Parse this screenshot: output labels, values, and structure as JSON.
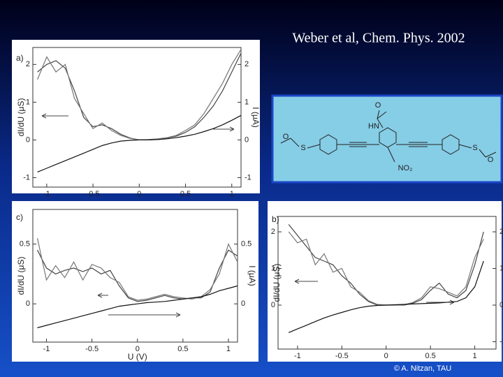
{
  "title": "Weber et al, Chem. Phys. 2002",
  "credit": "© A. Nitzan, TAU",
  "molecule": {
    "labels": [
      "O",
      "HN",
      "O",
      "S",
      "S",
      "O",
      "NO₂"
    ]
  },
  "chart_data": [
    {
      "type": "line",
      "panel_label": "a)",
      "ylabel": "dI/dU (μS)",
      "y2label": "I (μA)",
      "x": [
        -1.1,
        -1,
        -0.9,
        -0.8,
        -0.7,
        -0.6,
        -0.5,
        -0.4,
        -0.3,
        -0.2,
        -0.1,
        0,
        0.1,
        0.2,
        0.3,
        0.4,
        0.5,
        0.6,
        0.7,
        0.8,
        0.9,
        1,
        1.1
      ],
      "series": [
        {
          "color": "#444444",
          "values": [
            1.8,
            2.0,
            2.1,
            1.9,
            1.3,
            0.6,
            0.35,
            0.4,
            0.3,
            0.15,
            0.05,
            0,
            0,
            0.02,
            0.05,
            0.1,
            0.2,
            0.35,
            0.6,
            0.9,
            1.3,
            1.8,
            2.3
          ]
        },
        {
          "color": "#777777",
          "values": [
            1.6,
            2.2,
            1.8,
            2.0,
            1.1,
            0.7,
            0.3,
            0.45,
            0.25,
            0.12,
            0.04,
            0,
            0.01,
            0.03,
            0.06,
            0.12,
            0.25,
            0.4,
            0.7,
            1.1,
            1.5,
            2.0,
            2.4
          ]
        },
        {
          "color": "#111111",
          "axis": "y2",
          "values": [
            -0.85,
            -0.75,
            -0.65,
            -0.55,
            -0.45,
            -0.35,
            -0.25,
            -0.15,
            -0.08,
            -0.03,
            -0.01,
            0,
            0,
            0.01,
            0.03,
            0.06,
            0.1,
            0.15,
            0.22,
            0.3,
            0.4,
            0.52,
            0.65
          ]
        }
      ],
      "xlim": [
        -1.15,
        1.1
      ],
      "ylim": [
        -1.25,
        2.45
      ],
      "y2lim": [
        -1.25,
        2.45
      ],
      "xticks": [
        -1,
        -0.5,
        0,
        0.5,
        1
      ],
      "yticks": [
        -1,
        0,
        1,
        2
      ],
      "y2ticks": [
        -1,
        0,
        1,
        2
      ]
    },
    {
      "type": "line",
      "panel_label": "c)",
      "ylabel": "dI/dU (μS)",
      "y2label": "I (μA)",
      "xlabel": "U (V)",
      "x": [
        -1.1,
        -1,
        -0.9,
        -0.8,
        -0.7,
        -0.6,
        -0.5,
        -0.4,
        -0.3,
        -0.2,
        -0.1,
        0,
        0.1,
        0.2,
        0.3,
        0.4,
        0.5,
        0.6,
        0.7,
        0.8,
        0.9,
        1,
        1.1
      ],
      "series": [
        {
          "color": "#444444",
          "values": [
            0.45,
            0.3,
            0.25,
            0.28,
            0.3,
            0.27,
            0.3,
            0.25,
            0.28,
            0.15,
            0.05,
            0.02,
            0.03,
            0.05,
            0.07,
            0.05,
            0.04,
            0.05,
            0.05,
            0.1,
            0.3,
            0.45,
            0.4
          ]
        },
        {
          "color": "#777777",
          "values": [
            0.55,
            0.2,
            0.32,
            0.22,
            0.35,
            0.2,
            0.33,
            0.3,
            0.22,
            0.18,
            0.06,
            0.03,
            0.04,
            0.06,
            0.08,
            0.06,
            0.05,
            0.04,
            0.06,
            0.12,
            0.25,
            0.5,
            0.35
          ]
        },
        {
          "color": "#111111",
          "axis": "y2",
          "values": [
            -0.2,
            -0.18,
            -0.16,
            -0.14,
            -0.12,
            -0.1,
            -0.08,
            -0.06,
            -0.04,
            -0.02,
            -0.01,
            0,
            0.01,
            0.015,
            0.02,
            0.03,
            0.04,
            0.05,
            0.06,
            0.08,
            0.11,
            0.13,
            0.15
          ]
        }
      ],
      "xlim": [
        -1.15,
        1.1
      ],
      "ylim": [
        -0.32,
        0.79
      ],
      "y2lim": [
        -0.32,
        0.79
      ],
      "xticks": [
        -1,
        -0.5,
        0,
        0.5,
        1
      ],
      "yticks": [
        0,
        0.5
      ],
      "y2ticks": [
        0,
        0.5
      ]
    },
    {
      "type": "line",
      "panel_label": "b)",
      "ylabel": "dI/dU (μS)",
      "y2label": "I (μA)",
      "x": [
        -1.1,
        -1,
        -0.9,
        -0.8,
        -0.7,
        -0.6,
        -0.5,
        -0.4,
        -0.3,
        -0.2,
        -0.1,
        0,
        0.1,
        0.2,
        0.3,
        0.4,
        0.5,
        0.6,
        0.7,
        0.8,
        0.9,
        1,
        1.1
      ],
      "series": [
        {
          "color": "#444444",
          "values": [
            2.2,
            1.9,
            1.6,
            1.3,
            1.2,
            1.1,
            0.8,
            0.6,
            0.3,
            0.1,
            0,
            0,
            0,
            0,
            0.05,
            0.15,
            0.4,
            0.6,
            0.3,
            0.2,
            0.4,
            1.1,
            2.0
          ]
        },
        {
          "color": "#777777",
          "values": [
            2.0,
            1.7,
            1.8,
            1.1,
            1.4,
            0.9,
            1.0,
            0.5,
            0.35,
            0.12,
            0.02,
            0,
            0,
            0.01,
            0.07,
            0.2,
            0.5,
            0.45,
            0.35,
            0.25,
            0.5,
            1.3,
            1.8
          ]
        },
        {
          "color": "#111111",
          "axis": "y2",
          "values": [
            -0.75,
            -0.65,
            -0.55,
            -0.45,
            -0.35,
            -0.27,
            -0.2,
            -0.13,
            -0.07,
            -0.03,
            -0.01,
            0,
            0.01,
            0.02,
            0.03,
            0.04,
            0.05,
            0.06,
            0.08,
            0.1,
            0.2,
            0.5,
            1.2
          ]
        }
      ],
      "xlim": [
        -1.22,
        1.24
      ],
      "ylim": [
        -1.2,
        2.42
      ],
      "y2lim": [
        -1.2,
        2.42
      ],
      "xticks": [
        -1,
        -0.5,
        0,
        0.5,
        1
      ],
      "yticks": [
        0,
        1,
        2
      ],
      "y2ticks": [
        -1,
        0,
        1,
        2
      ]
    }
  ]
}
